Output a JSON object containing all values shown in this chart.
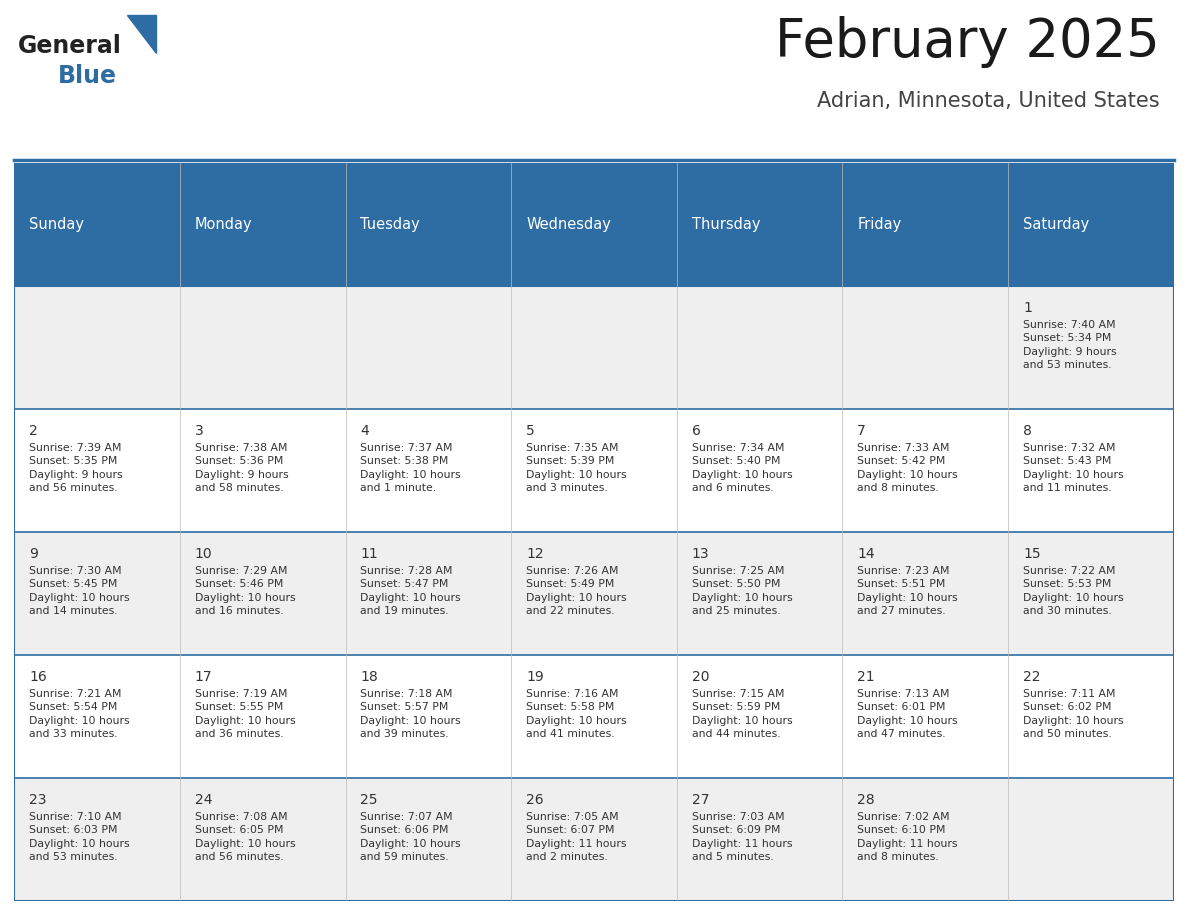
{
  "title": "February 2025",
  "subtitle": "Adrian, Minnesota, United States",
  "header_bg": "#2e6da4",
  "header_text_color": "#ffffff",
  "weekdays": [
    "Sunday",
    "Monday",
    "Tuesday",
    "Wednesday",
    "Thursday",
    "Friday",
    "Saturday"
  ],
  "row_bg_odd": "#efefef",
  "row_bg_even": "#ffffff",
  "cell_border_color": "#2e6da4",
  "day_number_color": "#333333",
  "info_text_color": "#333333",
  "calendar": [
    [
      {
        "day": null,
        "info": ""
      },
      {
        "day": null,
        "info": ""
      },
      {
        "day": null,
        "info": ""
      },
      {
        "day": null,
        "info": ""
      },
      {
        "day": null,
        "info": ""
      },
      {
        "day": null,
        "info": ""
      },
      {
        "day": 1,
        "info": "Sunrise: 7:40 AM\nSunset: 5:34 PM\nDaylight: 9 hours\nand 53 minutes."
      }
    ],
    [
      {
        "day": 2,
        "info": "Sunrise: 7:39 AM\nSunset: 5:35 PM\nDaylight: 9 hours\nand 56 minutes."
      },
      {
        "day": 3,
        "info": "Sunrise: 7:38 AM\nSunset: 5:36 PM\nDaylight: 9 hours\nand 58 minutes."
      },
      {
        "day": 4,
        "info": "Sunrise: 7:37 AM\nSunset: 5:38 PM\nDaylight: 10 hours\nand 1 minute."
      },
      {
        "day": 5,
        "info": "Sunrise: 7:35 AM\nSunset: 5:39 PM\nDaylight: 10 hours\nand 3 minutes."
      },
      {
        "day": 6,
        "info": "Sunrise: 7:34 AM\nSunset: 5:40 PM\nDaylight: 10 hours\nand 6 minutes."
      },
      {
        "day": 7,
        "info": "Sunrise: 7:33 AM\nSunset: 5:42 PM\nDaylight: 10 hours\nand 8 minutes."
      },
      {
        "day": 8,
        "info": "Sunrise: 7:32 AM\nSunset: 5:43 PM\nDaylight: 10 hours\nand 11 minutes."
      }
    ],
    [
      {
        "day": 9,
        "info": "Sunrise: 7:30 AM\nSunset: 5:45 PM\nDaylight: 10 hours\nand 14 minutes."
      },
      {
        "day": 10,
        "info": "Sunrise: 7:29 AM\nSunset: 5:46 PM\nDaylight: 10 hours\nand 16 minutes."
      },
      {
        "day": 11,
        "info": "Sunrise: 7:28 AM\nSunset: 5:47 PM\nDaylight: 10 hours\nand 19 minutes."
      },
      {
        "day": 12,
        "info": "Sunrise: 7:26 AM\nSunset: 5:49 PM\nDaylight: 10 hours\nand 22 minutes."
      },
      {
        "day": 13,
        "info": "Sunrise: 7:25 AM\nSunset: 5:50 PM\nDaylight: 10 hours\nand 25 minutes."
      },
      {
        "day": 14,
        "info": "Sunrise: 7:23 AM\nSunset: 5:51 PM\nDaylight: 10 hours\nand 27 minutes."
      },
      {
        "day": 15,
        "info": "Sunrise: 7:22 AM\nSunset: 5:53 PM\nDaylight: 10 hours\nand 30 minutes."
      }
    ],
    [
      {
        "day": 16,
        "info": "Sunrise: 7:21 AM\nSunset: 5:54 PM\nDaylight: 10 hours\nand 33 minutes."
      },
      {
        "day": 17,
        "info": "Sunrise: 7:19 AM\nSunset: 5:55 PM\nDaylight: 10 hours\nand 36 minutes."
      },
      {
        "day": 18,
        "info": "Sunrise: 7:18 AM\nSunset: 5:57 PM\nDaylight: 10 hours\nand 39 minutes."
      },
      {
        "day": 19,
        "info": "Sunrise: 7:16 AM\nSunset: 5:58 PM\nDaylight: 10 hours\nand 41 minutes."
      },
      {
        "day": 20,
        "info": "Sunrise: 7:15 AM\nSunset: 5:59 PM\nDaylight: 10 hours\nand 44 minutes."
      },
      {
        "day": 21,
        "info": "Sunrise: 7:13 AM\nSunset: 6:01 PM\nDaylight: 10 hours\nand 47 minutes."
      },
      {
        "day": 22,
        "info": "Sunrise: 7:11 AM\nSunset: 6:02 PM\nDaylight: 10 hours\nand 50 minutes."
      }
    ],
    [
      {
        "day": 23,
        "info": "Sunrise: 7:10 AM\nSunset: 6:03 PM\nDaylight: 10 hours\nand 53 minutes."
      },
      {
        "day": 24,
        "info": "Sunrise: 7:08 AM\nSunset: 6:05 PM\nDaylight: 10 hours\nand 56 minutes."
      },
      {
        "day": 25,
        "info": "Sunrise: 7:07 AM\nSunset: 6:06 PM\nDaylight: 10 hours\nand 59 minutes."
      },
      {
        "day": 26,
        "info": "Sunrise: 7:05 AM\nSunset: 6:07 PM\nDaylight: 11 hours\nand 2 minutes."
      },
      {
        "day": 27,
        "info": "Sunrise: 7:03 AM\nSunset: 6:09 PM\nDaylight: 11 hours\nand 5 minutes."
      },
      {
        "day": 28,
        "info": "Sunrise: 7:02 AM\nSunset: 6:10 PM\nDaylight: 11 hours\nand 8 minutes."
      },
      {
        "day": null,
        "info": ""
      }
    ]
  ]
}
